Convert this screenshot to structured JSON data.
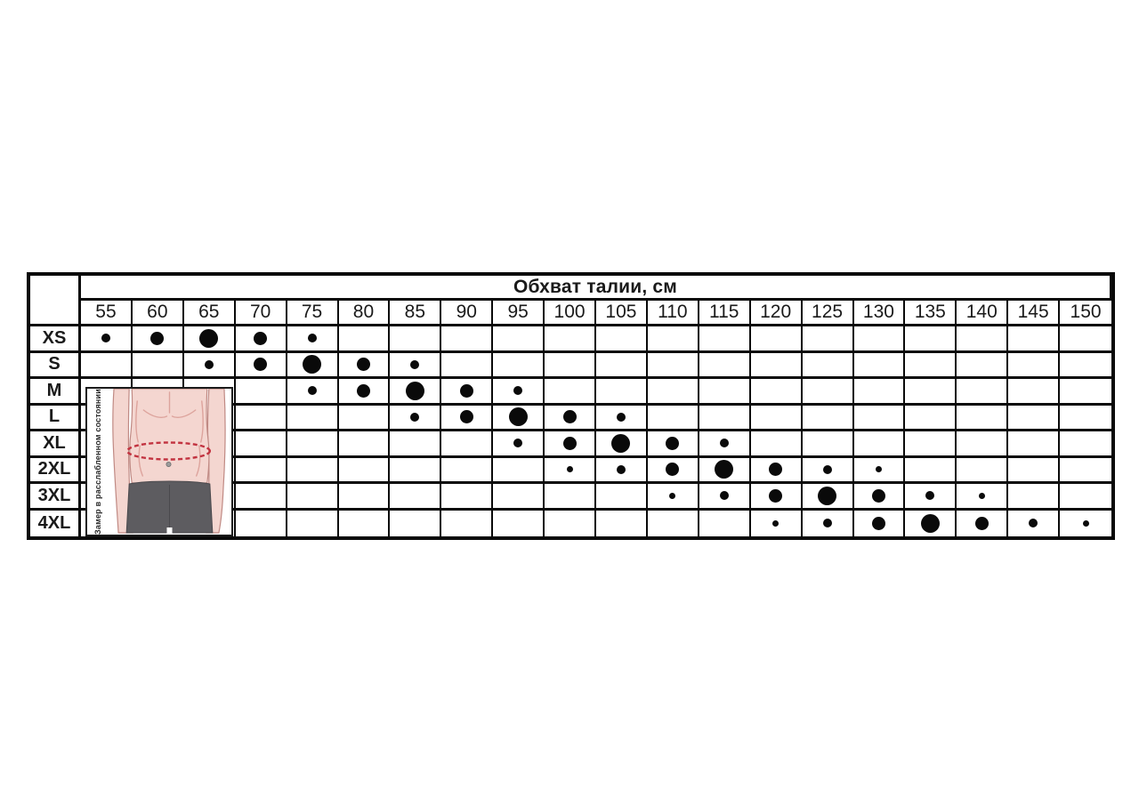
{
  "chart_data": {
    "type": "table",
    "title": "Обхват талии, см",
    "columns": [
      "55",
      "60",
      "65",
      "70",
      "75",
      "80",
      "85",
      "90",
      "95",
      "100",
      "105",
      "110",
      "115",
      "120",
      "125",
      "130",
      "135",
      "140",
      "145",
      "150"
    ],
    "row_labels": [
      "XS",
      "S",
      "M",
      "L",
      "XL",
      "2XL",
      "3XL",
      "4XL"
    ],
    "dot_size_classes": [
      "t",
      "s",
      "m",
      "l"
    ],
    "rows": [
      {
        "label": "XS",
        "dots": {
          "55": "s",
          "60": "m",
          "65": "l",
          "70": "m",
          "75": "s"
        }
      },
      {
        "label": "S",
        "dots": {
          "65": "s",
          "70": "m",
          "75": "l",
          "80": "m",
          "85": "s"
        }
      },
      {
        "label": "M",
        "dots": {
          "75": "s",
          "80": "m",
          "85": "l",
          "90": "m",
          "95": "s"
        }
      },
      {
        "label": "L",
        "dots": {
          "85": "s",
          "90": "m",
          "95": "l",
          "100": "m",
          "105": "s"
        }
      },
      {
        "label": "XL",
        "dots": {
          "95": "s",
          "100": "m",
          "105": "l",
          "110": "m",
          "115": "s"
        }
      },
      {
        "label": "2XL",
        "dots": {
          "100": "t",
          "105": "s",
          "110": "m",
          "115": "l",
          "120": "m",
          "125": "s",
          "130": "t"
        }
      },
      {
        "label": "3XL",
        "dots": {
          "110": "t",
          "115": "s",
          "120": "m",
          "125": "l",
          "130": "m",
          "135": "s",
          "140": "t"
        }
      },
      {
        "label": "4XL",
        "dots": {
          "120": "t",
          "125": "s",
          "130": "m",
          "135": "l",
          "140": "m",
          "145": "s",
          "150": "t"
        }
      }
    ]
  },
  "figure": {
    "note": "Замер в расслабленном состоянии",
    "colors": {
      "skin": "#f4d6d0",
      "skin_shadow": "#dda49d",
      "outline": "#c08a84",
      "shorts": "#5d5c60",
      "measure_line": "#c23340",
      "navel": "#9b9b9b"
    }
  },
  "dot_color": "#0a0a0a"
}
